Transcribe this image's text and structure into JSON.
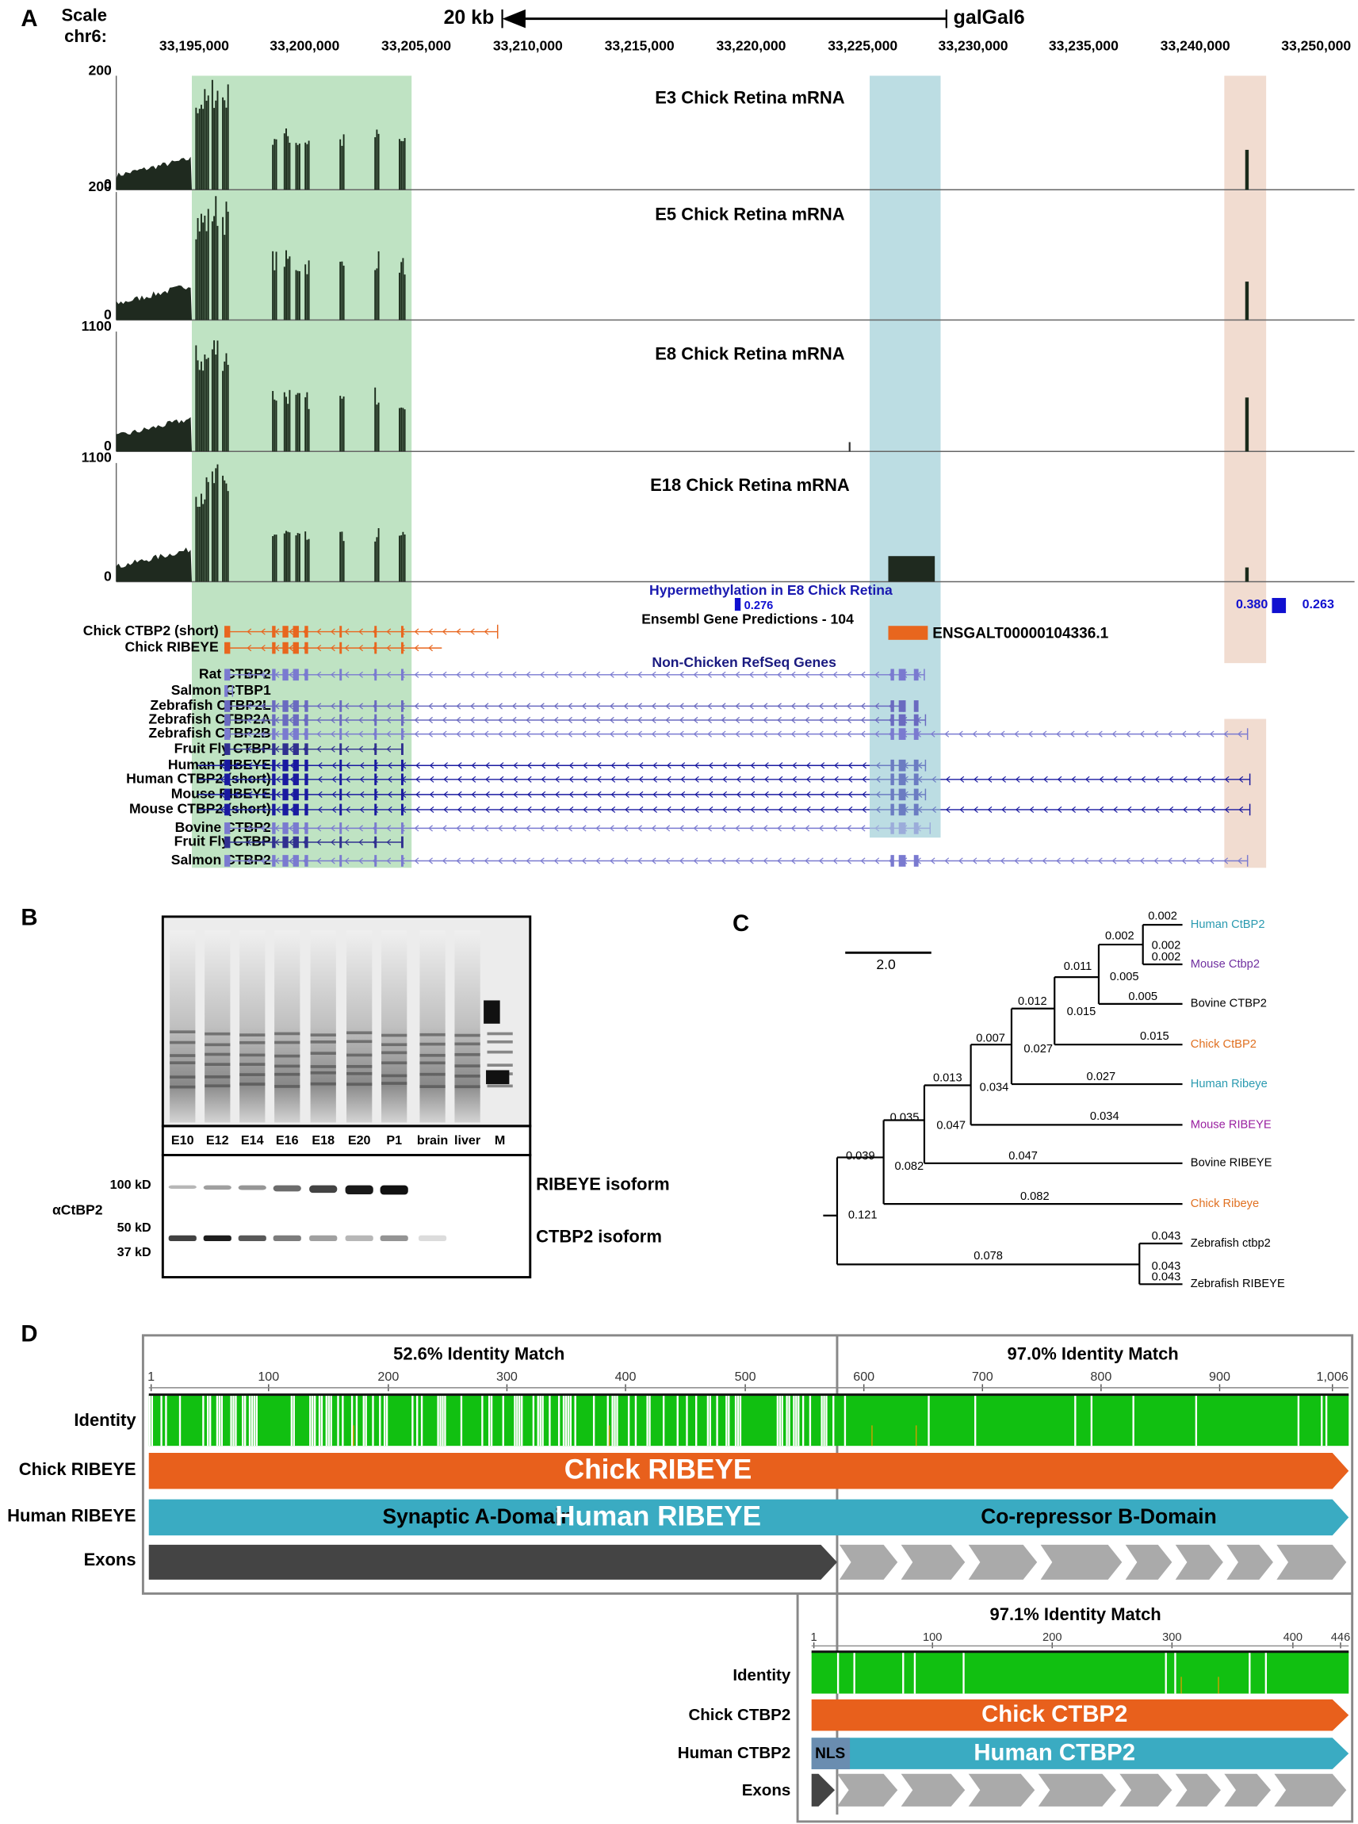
{
  "panel_a": {
    "label": "A",
    "scale_label": "Scale",
    "chrom_label": "chr6:",
    "scale_bar": "20 kb",
    "assembly": "galGal6",
    "coordinates": [
      "33,195,000",
      "33,200,000",
      "33,205,000",
      "33,210,000",
      "33,215,000",
      "33,220,000",
      "33,225,000",
      "33,230,000",
      "33,235,000",
      "33,240,000",
      "33,250,000"
    ],
    "tracks": [
      {
        "title": "E3 Chick Retina mRNA",
        "max": "200",
        "min": "0"
      },
      {
        "title": "E5 Chick Retina mRNA",
        "max": "200",
        "min": "0"
      },
      {
        "title": "E8 Chick Retina mRNA",
        "max": "1100",
        "min": "0"
      },
      {
        "title": "E18 Chick Retina mRNA",
        "max": "1100",
        "min": "0"
      }
    ],
    "methylation": {
      "title": "Hypermethylation in E8 Chick Retina",
      "values": [
        "0.276",
        "0.380",
        "0.263"
      ]
    },
    "ensembl": {
      "title": "Ensembl Gene Predictions - 104",
      "id": "ENSGALT00000104336.1"
    },
    "chick_genes": [
      "Chick CTBP2 (short)",
      "Chick RIBEYE"
    ],
    "refseq": {
      "title": "Non-Chicken RefSeq Genes",
      "genes": [
        "Rat CTBP2",
        "Salmon CTBP1",
        "Zebrafish CTBP2L",
        "Zebrafish CTBP2A",
        "Zebrafish CTBP2B",
        "Fruit Fly CTBP",
        "Human RIBEYE",
        "Human CTBP2 (short)",
        "Mouse RIBEYE",
        "Mouse CTBP2 (short)",
        "Bovine CTBP2",
        "Fruit Fly CTBP",
        "Salmon CTBP2"
      ]
    }
  },
  "panel_b": {
    "label": "B",
    "lanes": [
      "E10",
      "E12",
      "E14",
      "E16",
      "E18",
      "E20",
      "P1",
      "brain",
      "liver",
      "M"
    ],
    "antibody": "αCtBP2",
    "markers": [
      "100 kD",
      "50 kD",
      "37 kD"
    ],
    "isoforms": [
      "RIBEYE isoform",
      "CTBP2 isoform"
    ]
  },
  "panel_c": {
    "label": "C",
    "scale": "2.0",
    "leaves": [
      "Human CtBP2",
      "Mouse Ctbp2",
      "Bovine CTBP2",
      "Chick CtBP2",
      "Human Ribeye",
      "Mouse RIBEYE",
      "Bovine RIBEYE",
      "Chick Ribeye",
      "Zebrafish ctbp2",
      "Zebrafish RIBEYE"
    ],
    "branch_labels": [
      "0.002",
      "0.002",
      "0.002",
      "0.002",
      "0.011",
      "0.005",
      "0.005",
      "0.012",
      "0.015",
      "0.015",
      "0.007",
      "0.027",
      "0.027",
      "0.013",
      "0.034",
      "0.035",
      "0.034",
      "0.047",
      "0.047",
      "0.039",
      "0.082",
      "0.082",
      "0.121",
      "0.043",
      "0.078",
      "0.043",
      "0.043"
    ]
  },
  "panel_d": {
    "label": "D",
    "upper": {
      "matches": [
        "52.6% Identity Match",
        "97.0% Identity Match"
      ],
      "ticks": [
        "1",
        "100",
        "200",
        "300",
        "400",
        "500",
        "600",
        "700",
        "800",
        "900",
        "1,006"
      ],
      "rows": [
        "Identity",
        "Chick RIBEYE",
        "Human RIBEYE",
        "Exons"
      ],
      "chick_label": "Chick RIBEYE",
      "domain_a": "Synaptic A-Domain",
      "human_label": "Human RIBEYE",
      "domain_b": "Co-repressor B-Domain"
    },
    "lower": {
      "match": "97.1% Identity Match",
      "ticks": [
        "1",
        "100",
        "200",
        "300",
        "400",
        "446"
      ],
      "rows": [
        "Identity",
        "Chick CTBP2",
        "Human CTBP2",
        "Exons"
      ],
      "chick_label": "Chick CTBP2",
      "nls": "NLS",
      "human_label": "Human CTBP2"
    }
  }
}
